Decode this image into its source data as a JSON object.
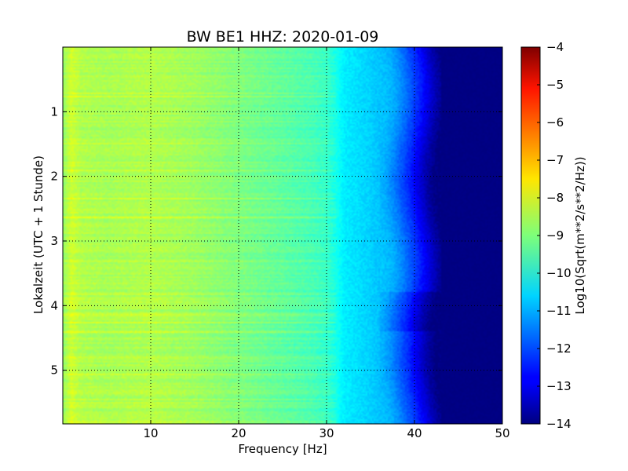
{
  "chart_data": {
    "type": "heatmap",
    "title": "BW BE1 HHZ: 2020-01-09",
    "xlabel": "Frequency [Hz]",
    "ylabel": "Lokalzeit (UTC + 1 Stunde)",
    "xlim": [
      0,
      50
    ],
    "ylim": [
      0,
      5.83
    ],
    "y_inverted": true,
    "x_ticks": [
      10,
      20,
      30,
      40,
      50
    ],
    "y_ticks": [
      1,
      2,
      3,
      4,
      5
    ],
    "grid": true,
    "grid_style": "dotted",
    "colormap": "jet",
    "colorbar": {
      "label": "Log10(Sqrt(m**2/s**2/Hz))",
      "min": -14,
      "max": -4,
      "ticks": [
        -4,
        -5,
        -6,
        -7,
        -8,
        -9,
        -10,
        -11,
        -12,
        -13,
        -14
      ]
    },
    "spectrum_profile": {
      "frequency_hz": [
        0,
        1,
        2,
        5,
        10,
        15,
        20,
        25,
        28,
        30,
        31,
        32,
        35,
        37,
        38,
        39,
        40,
        41,
        42,
        43,
        45,
        50
      ],
      "log10_amplitude": [
        -8.8,
        -8.2,
        -8.5,
        -8.6,
        -8.5,
        -8.7,
        -9.0,
        -9.3,
        -9.5,
        -9.7,
        -10.0,
        -10.4,
        -10.7,
        -11.0,
        -11.4,
        -11.9,
        -12.4,
        -13.0,
        -13.6,
        -14.0,
        -14.0,
        -14.0
      ]
    }
  }
}
